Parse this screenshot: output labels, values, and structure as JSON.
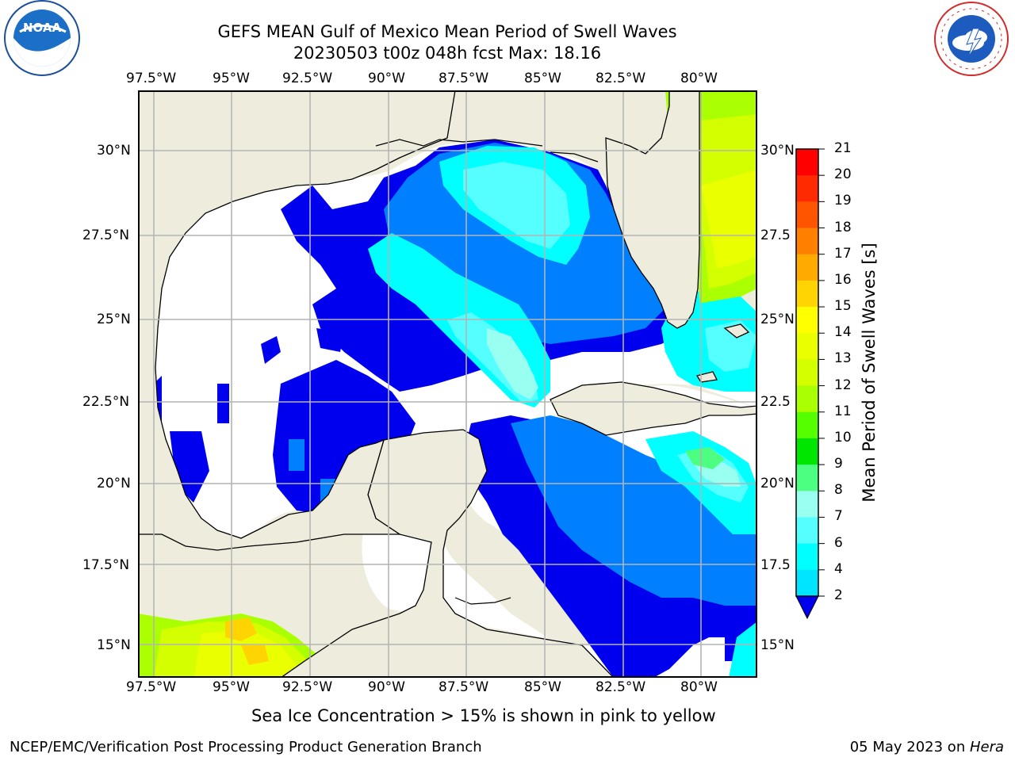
{
  "header": {
    "title_line1": "GEFS MEAN Gulf of Mexico Mean Period of Swell Waves",
    "title_line2": "20230503 t00z 048h fcst   Max: 18.16"
  },
  "logos": {
    "left": {
      "name": "noaa-logo",
      "text": "NOAA",
      "ring_text": "NATIONAL OCEANIC AND ATMOSPHERIC ADMINISTRATION · U.S. DEPARTMENT OF COMMERCE"
    },
    "right": {
      "name": "nws-logo",
      "ring_text": "NATIONAL WEATHER SERVICE"
    }
  },
  "map": {
    "top_lon_labels": [
      "97.5°W",
      "95°W",
      "92.5°W",
      "90°W",
      "87.5°W",
      "85°W",
      "82.5°W",
      "80°W"
    ],
    "bottom_lon_labels": [
      "97.5°W",
      "95°W",
      "92.5°W",
      "90°W",
      "87.5°W",
      "85°W",
      "82.5°W",
      "80°W"
    ],
    "left_lat_labels": [
      "30°N",
      "27.5°N",
      "25°N",
      "22.5°N",
      "20°N",
      "17.5°N",
      "15°N"
    ],
    "right_lat_labels": [
      "30°N",
      "27.5",
      "25°N",
      "22.5",
      "20°N",
      "17.5",
      "15°N"
    ],
    "land_color": "#eeeddd",
    "grid_color": "#b4b4b4"
  },
  "colorbar": {
    "label": "Mean Period of Swell Waves [s]",
    "ticks": [
      "21",
      "20",
      "19",
      "18",
      "17",
      "16",
      "15",
      "14",
      "13",
      "12",
      "11",
      "10",
      "9",
      "8",
      "7",
      "6",
      "4",
      "2"
    ],
    "colors_top_to_bottom": [
      "#ff0000",
      "#ff2a00",
      "#ff5500",
      "#ff7f00",
      "#ffaa00",
      "#ffd400",
      "#ffff00",
      "#eaff00",
      "#d4ff00",
      "#aaff00",
      "#55ff00",
      "#00e600",
      "#4dff80",
      "#99fff0",
      "#55ffff",
      "#00ffff",
      "#00e5ff",
      "#0080ff"
    ],
    "extend_color": "#0000ee"
  },
  "notes": {
    "sea_ice": "Sea Ice Concentration > 15% is shown in pink to yellow"
  },
  "footer": {
    "left": "NCEP/EMC/Verification Post Processing Product Generation Branch",
    "right_date": "05 May 2023 on ",
    "right_host": "Hera"
  }
}
